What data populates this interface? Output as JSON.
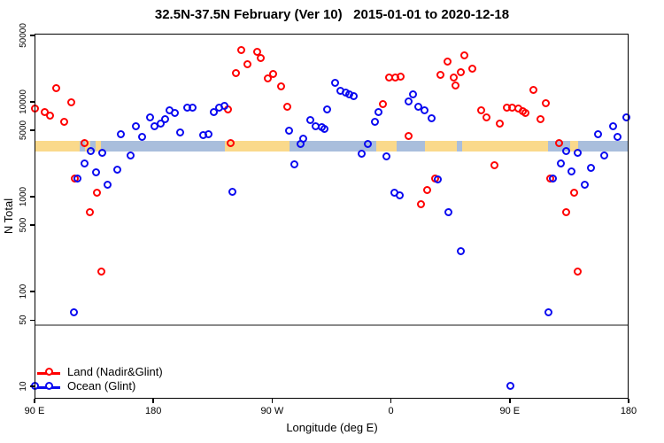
{
  "title": "32.5N-37.5N February (Ver 10)   2015-01-01 to 2020-12-18",
  "axes": {
    "x": {
      "label": "Longitude (deg E)",
      "ticks": [
        {
          "lon": 90,
          "label": "90 E"
        },
        {
          "lon": 180,
          "label": "180"
        },
        {
          "lon": 270,
          "label": "90 W"
        },
        {
          "lon": 360,
          "label": "0"
        },
        {
          "lon": 450,
          "label": "90 E"
        },
        {
          "lon": 540,
          "label": "180"
        }
      ],
      "range_deg_continuous": [
        90,
        540
      ]
    },
    "y": {
      "label": "N Total",
      "scale": "log",
      "ticks": [
        {
          "value": 10,
          "label": "10"
        },
        {
          "value": 50,
          "label": "50"
        },
        {
          "value": 100,
          "label": "100"
        },
        {
          "value": 500,
          "label": "500"
        },
        {
          "value": 1000,
          "label": "1000"
        },
        {
          "value": 5000,
          "label": "5000"
        },
        {
          "value": 10000,
          "label": "10000"
        },
        {
          "value": 50000,
          "label": "50000"
        }
      ],
      "range": [
        10,
        50000
      ]
    }
  },
  "legend": {
    "items": [
      {
        "label": "Land (Nadir&Glint)",
        "color": "#ff0000"
      },
      {
        "label": "Ocean (Glint)",
        "color": "#0a0af0"
      }
    ]
  },
  "colors": {
    "land_points": "#ff0000",
    "ocean_points": "#0a0af0",
    "strip_land": "#fad98b",
    "strip_ocean": "#a9bedc",
    "reference_line": "#8a8a8a"
  },
  "reference_line": {
    "value": 45
  },
  "chart_data": {
    "type": "scatter",
    "title": "32.5N-37.5N February (Ver 10)   2015-01-01 to 2020-12-18",
    "xlabel": "Longitude (deg E)",
    "ylabel": "N Total",
    "yscale": "log",
    "ylim": [
      10,
      50000
    ],
    "xlim_deg_continuous": [
      90,
      540
    ],
    "legend_position": "bottom-left",
    "land_ocean_strip": {
      "n_range": [
        3000,
        3900
      ],
      "ocean_base_deg": [
        90,
        540
      ],
      "land_segments_deg": [
        [
          90,
          124
        ],
        [
          128,
          132
        ],
        [
          136,
          140
        ],
        [
          234,
          283
        ],
        [
          349,
          364
        ],
        [
          386,
          479
        ],
        [
          496,
          502
        ]
      ],
      "water_patches_deg": [
        [
          410,
          414
        ]
      ]
    },
    "series": [
      {
        "name": "Land (Nadir&Glint)",
        "color": "#ff0000",
        "points": [
          [
            91,
            8400
          ],
          [
            98,
            7700
          ],
          [
            102,
            7100
          ],
          [
            107,
            13700
          ],
          [
            113,
            6100
          ],
          [
            118,
            9700
          ],
          [
            128,
            3600
          ],
          [
            121,
            1540
          ],
          [
            138,
            1090
          ],
          [
            132,
            680
          ],
          [
            141,
            160
          ],
          [
            237,
            8200
          ],
          [
            243,
            19800
          ],
          [
            247,
            34700
          ],
          [
            252,
            24500
          ],
          [
            259,
            33000
          ],
          [
            262,
            28600
          ],
          [
            267,
            17400
          ],
          [
            271,
            19400
          ],
          [
            277,
            14400
          ],
          [
            282,
            8700
          ],
          [
            239,
            3600
          ],
          [
            354,
            9300
          ],
          [
            359,
            17800
          ],
          [
            364,
            17800
          ],
          [
            368,
            18100
          ],
          [
            374,
            4300
          ],
          [
            383,
            820
          ],
          [
            388,
            1160
          ],
          [
            394,
            1520
          ],
          [
            398,
            19000
          ],
          [
            403,
            26200
          ],
          [
            408,
            17800
          ],
          [
            409,
            14700
          ],
          [
            413,
            20300
          ],
          [
            416,
            30500
          ],
          [
            422,
            22100
          ],
          [
            429,
            8000
          ],
          [
            433,
            6800
          ],
          [
            439,
            2120
          ],
          [
            443,
            5800
          ],
          [
            448,
            8600
          ],
          [
            452,
            8600
          ],
          [
            457,
            8400
          ],
          [
            460,
            7900
          ],
          [
            462,
            7500
          ],
          [
            468,
            13200
          ],
          [
            474,
            6500
          ],
          [
            478,
            9600
          ],
          [
            481,
            1540
          ],
          [
            488,
            3600
          ],
          [
            493,
            680
          ],
          [
            499,
            1090
          ],
          [
            502,
            160
          ]
        ]
      },
      {
        "name": "Ocean (Glint)",
        "color": "#0a0af0",
        "points": [
          [
            120,
            60
          ],
          [
            123,
            1540
          ],
          [
            128,
            2210
          ],
          [
            133,
            2990
          ],
          [
            137,
            1790
          ],
          [
            142,
            2870
          ],
          [
            146,
            1320
          ],
          [
            153,
            1900
          ],
          [
            156,
            4500
          ],
          [
            163,
            2690
          ],
          [
            167,
            5460
          ],
          [
            172,
            4220
          ],
          [
            178,
            6760
          ],
          [
            181,
            5460
          ],
          [
            186,
            5820
          ],
          [
            189,
            6490
          ],
          [
            193,
            8040
          ],
          [
            197,
            7530
          ],
          [
            201,
            4700
          ],
          [
            206,
            8570
          ],
          [
            210,
            8570
          ],
          [
            218,
            4400
          ],
          [
            222,
            4500
          ],
          [
            226,
            7700
          ],
          [
            230,
            8570
          ],
          [
            234,
            8950
          ],
          [
            240,
            1110
          ],
          [
            283,
            4910
          ],
          [
            287,
            2170
          ],
          [
            292,
            3550
          ],
          [
            294,
            4050
          ],
          [
            299,
            6350
          ],
          [
            303,
            5460
          ],
          [
            308,
            5350
          ],
          [
            310,
            5100
          ],
          [
            312,
            8200
          ],
          [
            318,
            15650
          ],
          [
            322,
            12900
          ],
          [
            326,
            12360
          ],
          [
            329,
            11830
          ],
          [
            332,
            11350
          ],
          [
            338,
            2800
          ],
          [
            343,
            3550
          ],
          [
            348,
            6080
          ],
          [
            351,
            7700
          ],
          [
            357,
            2630
          ],
          [
            363,
            1090
          ],
          [
            367,
            1020
          ],
          [
            374,
            9950
          ],
          [
            377,
            11830
          ],
          [
            381,
            8750
          ],
          [
            386,
            8040
          ],
          [
            391,
            6620
          ],
          [
            396,
            1500
          ],
          [
            404,
            680
          ],
          [
            413,
            263
          ],
          [
            91,
            10
          ],
          [
            451,
            10
          ],
          [
            480,
            60
          ],
          [
            483,
            1540
          ],
          [
            489,
            2210
          ],
          [
            493,
            2990
          ],
          [
            497,
            1820
          ],
          [
            502,
            2870
          ],
          [
            507,
            1320
          ],
          [
            512,
            1990
          ],
          [
            517,
            4500
          ],
          [
            522,
            2690
          ],
          [
            529,
            5460
          ],
          [
            532,
            4220
          ],
          [
            539,
            6760
          ]
        ]
      }
    ]
  }
}
